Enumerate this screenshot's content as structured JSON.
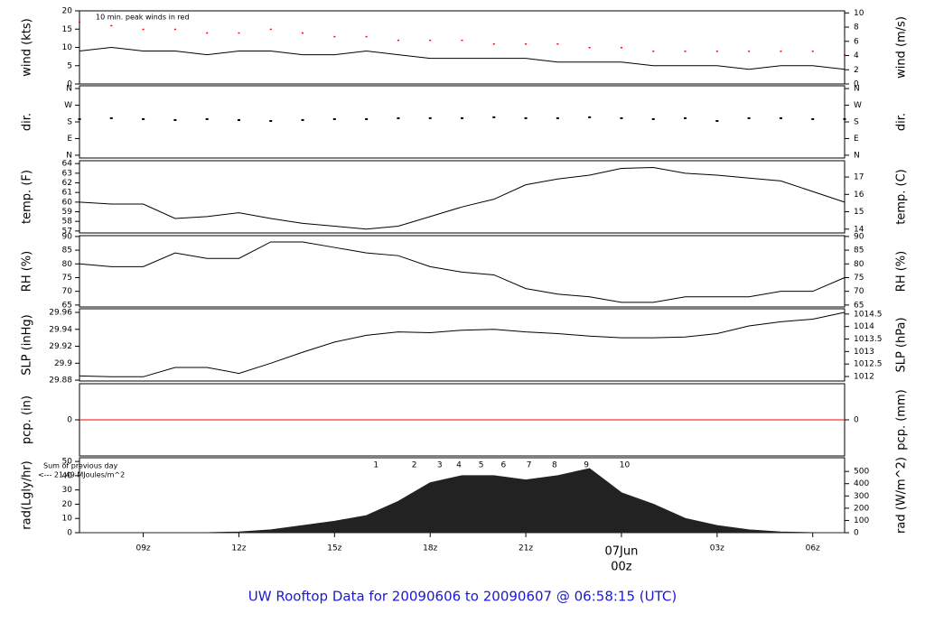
{
  "title": "UW Rooftop Data for 20090606  to  20090607 @ 06:58:15  (UTC)",
  "chart_data": [
    {
      "type": "line",
      "ylabel": "wind (kts)",
      "y2label": "wind (m/s)",
      "annotation": "10 min. peak winds in red",
      "annotation_color": "#cc0000",
      "x": [
        7,
        8,
        9,
        10,
        11,
        12,
        13,
        14,
        15,
        16,
        17,
        18,
        19,
        20,
        21,
        22,
        23,
        24,
        25,
        26,
        27,
        28,
        29,
        30,
        31
      ],
      "xlim": [
        7,
        31
      ],
      "ylim": [
        0,
        20
      ],
      "yticks": [
        0,
        5,
        10,
        15,
        20
      ],
      "y2lim": [
        0,
        10.29
      ],
      "y2ticks": [
        0,
        2,
        4,
        6,
        8,
        10
      ],
      "series": [
        {
          "name": "wind",
          "color": "#000000",
          "mark": "line",
          "values": [
            9,
            10,
            9,
            9,
            8,
            9,
            9,
            8,
            8,
            9,
            8,
            7,
            7,
            7,
            7,
            6,
            6,
            6,
            5,
            5,
            5,
            4,
            5,
            5,
            4
          ]
        },
        {
          "name": "peak",
          "color": "#ff0000",
          "mark": "dash",
          "values": [
            17,
            16,
            15,
            15,
            14,
            14,
            15,
            14,
            13,
            13,
            12,
            12,
            12,
            11,
            11,
            11,
            10,
            10,
            9,
            9,
            9,
            9,
            9,
            9,
            8
          ]
        }
      ]
    },
    {
      "type": "scatter",
      "ylabel": "dir.",
      "y2label": "dir.",
      "x": [
        7,
        8,
        9,
        10,
        11,
        12,
        13,
        14,
        15,
        16,
        17,
        18,
        19,
        20,
        21,
        22,
        23,
        24,
        25,
        26,
        27,
        28,
        29,
        30,
        31
      ],
      "xlim": [
        7,
        31
      ],
      "ylim": [
        -15,
        375
      ],
      "yticks": [
        {
          "value": 0,
          "label": "N"
        },
        {
          "value": 90,
          "label": "E"
        },
        {
          "value": 180,
          "label": "S"
        },
        {
          "value": 270,
          "label": "W"
        },
        {
          "value": 360,
          "label": "N"
        }
      ],
      "y2lim": [
        -15,
        375
      ],
      "y2ticks": [
        {
          "value": 0,
          "label": "N"
        },
        {
          "value": 90,
          "label": "E"
        },
        {
          "value": 180,
          "label": "S"
        },
        {
          "value": 270,
          "label": "W"
        },
        {
          "value": 360,
          "label": "N"
        }
      ],
      "series": [
        {
          "name": "dir",
          "color": "#000000",
          "mark": "points",
          "values": [
            195,
            200,
            195,
            190,
            195,
            190,
            185,
            190,
            195,
            195,
            200,
            200,
            200,
            205,
            200,
            200,
            205,
            200,
            195,
            200,
            185,
            200,
            200,
            195,
            195
          ]
        }
      ]
    },
    {
      "type": "line",
      "ylabel": "temp. (F)",
      "y2label": "temp. (C)",
      "x": [
        7,
        8,
        9,
        10,
        11,
        12,
        13,
        14,
        15,
        16,
        17,
        18,
        19,
        20,
        21,
        22,
        23,
        24,
        25,
        26,
        27,
        28,
        29,
        30,
        31
      ],
      "xlim": [
        7,
        31
      ],
      "ylim": [
        56.8,
        64.3
      ],
      "yticks": [
        57,
        58,
        59,
        60,
        61,
        62,
        63,
        64
      ],
      "y2lim": [
        13.78,
        17.94
      ],
      "y2ticks": [
        14,
        15,
        16,
        17
      ],
      "series": [
        {
          "name": "temp",
          "color": "#000000",
          "mark": "line",
          "values": [
            60,
            59.8,
            59.8,
            58.3,
            58.5,
            58.9,
            58.3,
            57.8,
            57.5,
            57.2,
            57.5,
            58.5,
            59.5,
            60.3,
            61.8,
            62.4,
            62.8,
            63.5,
            63.6,
            63,
            62.8,
            62.5,
            62.2,
            61.1,
            60
          ]
        }
      ]
    },
    {
      "type": "line",
      "ylabel": "RH (%)",
      "y2label": "RH (%)",
      "x": [
        7,
        8,
        9,
        10,
        11,
        12,
        13,
        14,
        15,
        16,
        17,
        18,
        19,
        20,
        21,
        22,
        23,
        24,
        25,
        26,
        27,
        28,
        29,
        30,
        31
      ],
      "xlim": [
        7,
        31
      ],
      "ylim": [
        64.3,
        90.3
      ],
      "yticks": [
        65,
        70,
        75,
        80,
        85,
        90
      ],
      "y2lim": [
        64.3,
        90.3
      ],
      "y2ticks": [
        65,
        70,
        75,
        80,
        85,
        90
      ],
      "series": [
        {
          "name": "RH",
          "color": "#000000",
          "mark": "line",
          "values": [
            80,
            79,
            79,
            84,
            82,
            82,
            88,
            88,
            86,
            84,
            83,
            79,
            77,
            76,
            71,
            69,
            68,
            66,
            66,
            68,
            68,
            68,
            70,
            70,
            75
          ]
        }
      ]
    },
    {
      "type": "line",
      "ylabel": "SLP (inHg)",
      "y2label": "SLP (hPa)",
      "x": [
        7,
        8,
        9,
        10,
        11,
        12,
        13,
        14,
        15,
        16,
        17,
        18,
        19,
        20,
        21,
        22,
        23,
        24,
        25,
        26,
        27,
        28,
        29,
        30,
        31
      ],
      "xlim": [
        7,
        31
      ],
      "ylim": [
        29.879,
        29.9643
      ],
      "yticks": [
        29.88,
        29.9,
        29.92,
        29.94,
        29.96
      ],
      "y2lim": [
        1011.82,
        1014.71
      ],
      "y2ticks": [
        1012,
        1012.5,
        1013,
        1013.5,
        1014,
        1014.5
      ],
      "series": [
        {
          "name": "SLP",
          "color": "#000000",
          "mark": "line",
          "values": [
            29.885,
            29.884,
            29.884,
            29.895,
            29.895,
            29.888,
            29.9,
            29.913,
            29.925,
            29.933,
            29.937,
            29.936,
            29.939,
            29.94,
            29.937,
            29.935,
            29.932,
            29.93,
            29.93,
            29.931,
            29.935,
            29.944,
            29.949,
            29.952,
            29.96
          ]
        }
      ]
    },
    {
      "type": "line",
      "ylabel": "pcp. (in)",
      "y2label": "pcp. (mm)",
      "x": [
        7,
        8,
        9,
        10,
        11,
        12,
        13,
        14,
        15,
        16,
        17,
        18,
        19,
        20,
        21,
        22,
        23,
        24,
        25,
        26,
        27,
        28,
        29,
        30,
        31
      ],
      "xlim": [
        7,
        31
      ],
      "ylim": [
        -1,
        1
      ],
      "yticks": [
        0
      ],
      "y2lim": [
        -1,
        1
      ],
      "y2ticks": [
        0
      ],
      "series": [
        {
          "name": "pcp",
          "color": "#ff0000",
          "mark": "line",
          "values": [
            0,
            0,
            0,
            0,
            0,
            0,
            0,
            0,
            0,
            0,
            0,
            0,
            0,
            0,
            0,
            0,
            0,
            0,
            0,
            0,
            0,
            0,
            0,
            0,
            0
          ]
        }
      ]
    },
    {
      "type": "area",
      "ylabel": "rad(Lgly/hr)",
      "y2label": "rad (W/m^2)",
      "annotations": [
        "Sum of previous day",
        "<--- 21.49 MJoules/m^2"
      ],
      "annotation_color": "#9900cc",
      "hour_labels": [
        {
          "value": 16.3,
          "label": "1"
        },
        {
          "value": 17.5,
          "label": "2"
        },
        {
          "value": 18.3,
          "label": "3"
        },
        {
          "value": 18.9,
          "label": "4"
        },
        {
          "value": 19.6,
          "label": "5"
        },
        {
          "value": 20.3,
          "label": "6"
        },
        {
          "value": 21.1,
          "label": "7"
        },
        {
          "value": 21.9,
          "label": "8"
        },
        {
          "value": 22.9,
          "label": "9"
        },
        {
          "value": 24.1,
          "label": "10"
        }
      ],
      "x": [
        7,
        8,
        9,
        10,
        11,
        12,
        13,
        14,
        15,
        16,
        17,
        18,
        19,
        20,
        21,
        22,
        23,
        24,
        25,
        26,
        27,
        28,
        29,
        30,
        31
      ],
      "xlim": [
        7,
        31
      ],
      "ylim": [
        0,
        52.6
      ],
      "yticks": [
        0,
        10,
        20,
        30,
        40,
        50
      ],
      "y2lim": [
        0,
        611.7
      ],
      "y2ticks": [
        0,
        100,
        200,
        300,
        400,
        500
      ],
      "xticks": [
        {
          "value": 9,
          "label": "09z"
        },
        {
          "value": 12,
          "label": "12z"
        },
        {
          "value": 15,
          "label": "15z"
        },
        {
          "value": 18,
          "label": "18z"
        },
        {
          "value": 21,
          "label": "21z"
        },
        {
          "value": 24,
          "label": "00z"
        },
        {
          "value": 27,
          "label": "03z"
        },
        {
          "value": 30,
          "label": "06z"
        }
      ],
      "date_label": {
        "value": 24,
        "label": "07Jun"
      },
      "date_color": "#cc0000",
      "series": [
        {
          "name": "rad",
          "color": "#222222",
          "mark": "area",
          "values": [
            0,
            0,
            0,
            0,
            0,
            0.5,
            2,
            5,
            8,
            12,
            22,
            35,
            40,
            40,
            37,
            40,
            45,
            28,
            20,
            10,
            5,
            2,
            0.5,
            0,
            0
          ]
        }
      ]
    }
  ]
}
